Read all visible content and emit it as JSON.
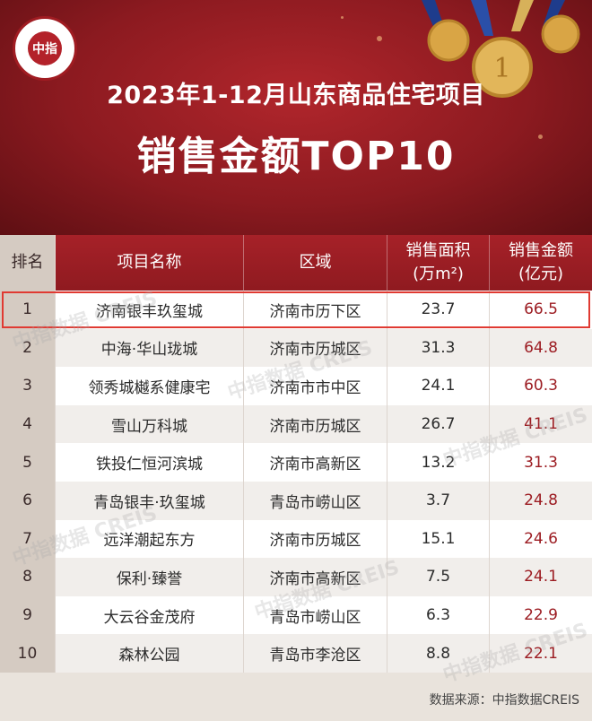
{
  "header": {
    "logo_text": "中指",
    "title_line1": "2023年1-12月山东商品住宅项目",
    "title_line2": "销售金额TOP10"
  },
  "table": {
    "headers": {
      "rank": "排名",
      "name": "项目名称",
      "area": "区域",
      "size_line1": "销售面积",
      "size_line2": "(万m²)",
      "amount_line1": "销售金额",
      "amount_line2": "(亿元)"
    },
    "rows": [
      {
        "rank": "1",
        "name": "济南银丰玖玺城",
        "area": "济南市历下区",
        "size": "23.7",
        "amount": "66.5"
      },
      {
        "rank": "2",
        "name": "中海·华山珑城",
        "area": "济南市历城区",
        "size": "31.3",
        "amount": "64.8"
      },
      {
        "rank": "3",
        "name": "领秀城樾系健康宅",
        "area": "济南市市中区",
        "size": "24.1",
        "amount": "60.3"
      },
      {
        "rank": "4",
        "name": "雪山万科城",
        "area": "济南市历城区",
        "size": "26.7",
        "amount": "41.1"
      },
      {
        "rank": "5",
        "name": "铁投仁恒河滨城",
        "area": "济南市高新区",
        "size": "13.2",
        "amount": "31.3"
      },
      {
        "rank": "6",
        "name": "青岛银丰·玖玺城",
        "area": "青岛市崂山区",
        "size": "3.7",
        "amount": "24.8"
      },
      {
        "rank": "7",
        "name": "远洋潮起东方",
        "area": "济南市历城区",
        "size": "15.1",
        "amount": "24.6"
      },
      {
        "rank": "8",
        "name": "保利·臻誉",
        "area": "济南市高新区",
        "size": "7.5",
        "amount": "24.1"
      },
      {
        "rank": "9",
        "name": "大云谷金茂府",
        "area": "青岛市崂山区",
        "size": "6.3",
        "amount": "22.9"
      },
      {
        "rank": "10",
        "name": "森林公园",
        "area": "青岛市李沧区",
        "size": "8.8",
        "amount": "22.1"
      }
    ]
  },
  "watermark_text": "中指数据 CREIS",
  "source": "数据来源：中指数据CREIS"
}
